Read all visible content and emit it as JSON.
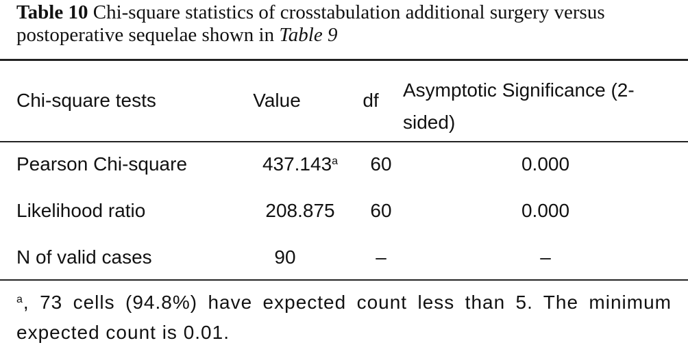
{
  "caption": {
    "label": "Table 10",
    "text": "Chi-square statistics of crosstabulation additional surgery versus postoperative sequelae shown in",
    "ref": "Table 9"
  },
  "table": {
    "header": [
      "Chi-square tests",
      "Value",
      "df",
      "Asymptotic Significance (2-sided)"
    ],
    "rows": [
      [
        "Pearson Chi-square",
        "437.143",
        "60",
        "0.000"
      ],
      [
        "Likelihood ratio",
        "208.875",
        "60",
        "0.000"
      ],
      [
        "N of valid cases",
        "90",
        "–",
        "–"
      ]
    ],
    "footnote_marker": "a"
  },
  "footnote": {
    "text": ", 73 cells (94.8%) have expected count less than 5. The minimum expected count is 0.01."
  }
}
